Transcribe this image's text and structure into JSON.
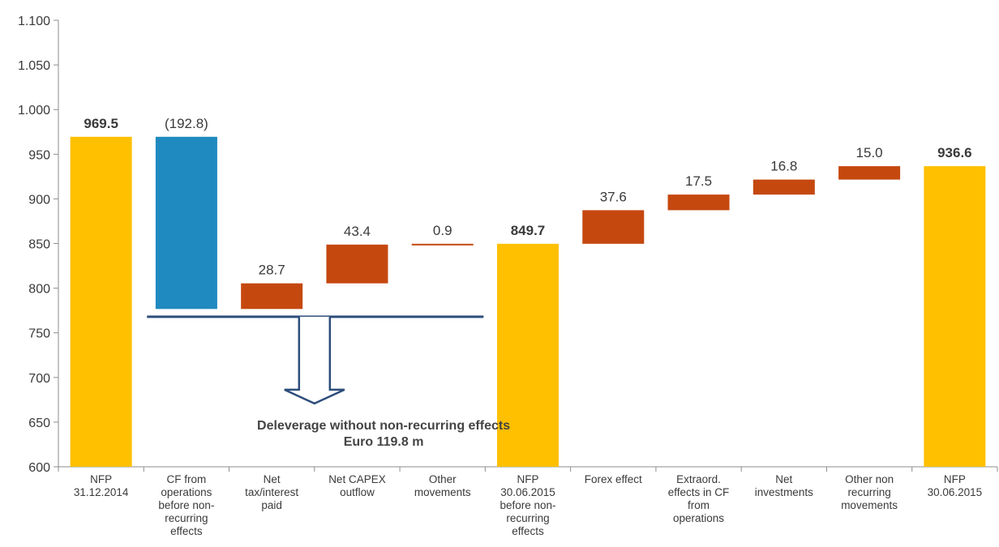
{
  "chart_data": {
    "type": "waterfall",
    "ylim": [
      600,
      1100
    ],
    "yticks": [
      "600",
      "650",
      "700",
      "750",
      "800",
      "850",
      "900",
      "950",
      "1.000",
      "1.050",
      "1.100"
    ],
    "grid": false,
    "categories": [
      {
        "label": [
          "NFP",
          "31.12.2014"
        ],
        "kind": "total",
        "value": 969.5,
        "display": "969.5"
      },
      {
        "label": [
          "CF from",
          "operations",
          "before non-",
          "recurring",
          "effects"
        ],
        "kind": "decrease",
        "value": -192.8,
        "display": "(192.8)"
      },
      {
        "label": [
          "Net",
          "tax/interest",
          "paid"
        ],
        "kind": "increase",
        "value": 28.7,
        "display": "28.7"
      },
      {
        "label": [
          "Net CAPEX",
          "outflow"
        ],
        "kind": "increase",
        "value": 43.4,
        "display": "43.4"
      },
      {
        "label": [
          "Other",
          "movements"
        ],
        "kind": "increase",
        "value": 0.9,
        "display": "0.9"
      },
      {
        "label": [
          "NFP",
          "30.06.2015",
          "before non-",
          "recurring",
          "effects"
        ],
        "kind": "total",
        "value": 849.7,
        "display": "849.7"
      },
      {
        "label": [
          "Forex effect"
        ],
        "kind": "increase",
        "value": 37.6,
        "display": "37.6"
      },
      {
        "label": [
          "Extraord.",
          "effects in CF",
          "from",
          "operations"
        ],
        "kind": "increase",
        "value": 17.5,
        "display": "17.5"
      },
      {
        "label": [
          "Net",
          "investments"
        ],
        "kind": "increase",
        "value": 16.8,
        "display": "16.8"
      },
      {
        "label": [
          "Other non",
          "recurring",
          "movements"
        ],
        "kind": "increase",
        "value": 15.0,
        "display": "15.0"
      },
      {
        "label": [
          "NFP",
          "30.06.2015"
        ],
        "kind": "total",
        "value": 936.6,
        "display": "936.6"
      }
    ],
    "annotation": {
      "lines": [
        "Deleverage without non-recurring effects",
        "Euro 119.8 m"
      ],
      "bracket_level": 768,
      "from_category": 1,
      "to_category": 4
    },
    "colors": {
      "total": "#FFC000",
      "decrease": "#1F8AC0",
      "increase": "#C5480F",
      "bracket": "#2E4D7B",
      "axis": "#8C8C8C"
    }
  }
}
